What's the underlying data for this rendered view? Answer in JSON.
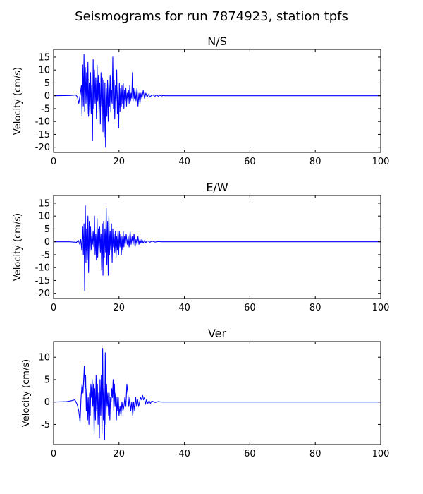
{
  "figure": {
    "title": "Seismograms for run 7874923, station tpfs"
  },
  "chart_data": [
    {
      "type": "line",
      "title": "N/S",
      "ylabel": "Velocity (cm/s)",
      "xlabel": "",
      "xlim": [
        0,
        100
      ],
      "ylim": [
        -22,
        18
      ],
      "xticks": [
        "0",
        "20",
        "40",
        "60",
        "80",
        "100"
      ],
      "yticks": [
        "15",
        "10",
        "5",
        "0",
        "-5",
        "-10",
        "-15",
        "-20"
      ],
      "grid": false,
      "series": [
        {
          "color": "#0000ff",
          "x": [
            0,
            5,
            6.8,
            7.3,
            7.7,
            8.2,
            8.5,
            8.7,
            8.9,
            9.1,
            9.3,
            9.5,
            9.7,
            9.9,
            10.1,
            10.3,
            10.5,
            10.7,
            10.9,
            11.1,
            11.3,
            11.5,
            11.7,
            11.9,
            12.1,
            12.3,
            12.5,
            12.7,
            12.9,
            13.1,
            13.3,
            13.5,
            13.7,
            13.9,
            14.1,
            14.3,
            14.5,
            14.7,
            14.9,
            15.1,
            15.3,
            15.5,
            15.7,
            15.9,
            16.1,
            16.3,
            16.5,
            16.7,
            16.9,
            17.1,
            17.3,
            17.5,
            17.7,
            17.9,
            18.1,
            18.3,
            18.5,
            18.7,
            18.9,
            19.1,
            19.3,
            19.5,
            19.7,
            19.9,
            20.1,
            20.3,
            20.5,
            20.7,
            20.9,
            21.1,
            21.3,
            21.5,
            21.7,
            21.9,
            22.1,
            22.3,
            22.5,
            22.7,
            22.9,
            23.1,
            23.3,
            23.5,
            23.7,
            23.9,
            24.1,
            24.3,
            24.5,
            24.7,
            24.9,
            25.2,
            25.5,
            25.8,
            26.1,
            26.4,
            26.7,
            27.0,
            27.4,
            27.8,
            28.2,
            28.6,
            29.0,
            29.5,
            30.0,
            30.5,
            31.0,
            31.5,
            32.0,
            32.5,
            33.0,
            33.5,
            34.0,
            35.0,
            36.0,
            38.0,
            40.0,
            100
          ],
          "y": [
            0,
            0.1,
            0.3,
            -0.5,
            -3,
            1,
            4,
            -8,
            12,
            -4,
            16,
            -6,
            11,
            -3,
            9,
            -7,
            13,
            -8,
            5,
            -6,
            9,
            -7,
            4,
            -17.5,
            14,
            -5,
            10,
            -3,
            7,
            -9,
            12,
            -2,
            8,
            -6,
            5,
            -11,
            9,
            -4,
            7,
            -14,
            6,
            -16,
            5,
            -20,
            3,
            -8,
            6,
            -10,
            5,
            -4,
            8,
            -6,
            2,
            -3,
            15,
            -5,
            6,
            -9,
            4,
            -2,
            10,
            -7,
            2,
            -12.5,
            5,
            -6,
            3,
            -4,
            4,
            -3,
            5,
            -5,
            2,
            -2,
            3,
            -4,
            1,
            -1,
            2,
            -3,
            4,
            -2,
            1,
            -1,
            9,
            -2,
            3,
            -1,
            2,
            -2,
            3,
            -4,
            1,
            -3,
            1,
            -1,
            2,
            -1,
            1,
            -0.5,
            0.5,
            -0.5,
            0.3,
            0.2,
            -0.2,
            0.4,
            -0.2,
            0.2,
            -0.1,
            0.1,
            0,
            0,
            0,
            0,
            0,
            0
          ]
        }
      ]
    },
    {
      "type": "line",
      "title": "E/W",
      "ylabel": "Velocity (cm/s)",
      "xlabel": "",
      "xlim": [
        0,
        100
      ],
      "ylim": [
        -22,
        18
      ],
      "xticks": [
        "0",
        "20",
        "40",
        "60",
        "80",
        "100"
      ],
      "yticks": [
        "15",
        "10",
        "5",
        "0",
        "-5",
        "-10",
        "-15",
        "-20"
      ],
      "grid": false,
      "series": [
        {
          "color": "#0000ff",
          "x": [
            0,
            5,
            7.0,
            7.6,
            8.0,
            8.3,
            8.6,
            8.9,
            9.1,
            9.3,
            9.5,
            9.7,
            9.9,
            10.1,
            10.3,
            10.5,
            10.7,
            10.9,
            11.1,
            11.3,
            11.5,
            11.7,
            11.9,
            12.1,
            12.3,
            12.5,
            12.7,
            12.9,
            13.1,
            13.3,
            13.5,
            13.7,
            13.9,
            14.1,
            14.3,
            14.5,
            14.7,
            14.9,
            15.1,
            15.3,
            15.5,
            15.7,
            15.9,
            16.1,
            16.3,
            16.5,
            16.7,
            16.9,
            17.1,
            17.3,
            17.5,
            17.7,
            17.9,
            18.1,
            18.3,
            18.5,
            18.7,
            18.9,
            19.1,
            19.3,
            19.5,
            19.7,
            19.9,
            20.1,
            20.3,
            20.5,
            20.7,
            20.9,
            21.1,
            21.3,
            21.5,
            21.7,
            21.9,
            22.2,
            22.5,
            22.8,
            23.1,
            23.4,
            23.7,
            24.0,
            24.3,
            24.6,
            24.9,
            25.2,
            25.5,
            25.8,
            26.1,
            26.4,
            26.7,
            27.0,
            27.4,
            27.8,
            28.2,
            28.6,
            29.0,
            29.5,
            30.0,
            31.0,
            32.0,
            33.0,
            34.0,
            36.0,
            40.0,
            100
          ],
          "y": [
            0,
            0,
            -0.2,
            0.5,
            -1,
            1,
            -3,
            6,
            -5,
            7,
            -19,
            14,
            -8,
            5,
            -7,
            10,
            -12,
            8,
            -4,
            6,
            -3,
            2,
            -1,
            4,
            -2,
            10,
            -5,
            3,
            -7,
            9,
            -6,
            5,
            -3,
            6,
            -4,
            3,
            -11,
            7,
            -13,
            8,
            -6,
            5,
            -4,
            13,
            -9,
            8,
            -13,
            10,
            -5,
            4,
            -3,
            7,
            -8,
            5,
            -2,
            3,
            -4,
            4,
            -6,
            2,
            -3,
            4,
            -5,
            4,
            -2,
            3,
            -5,
            2,
            -3,
            4,
            -2,
            2,
            -1,
            3,
            -1,
            2,
            -2,
            4,
            -1,
            2,
            -1,
            3,
            -2,
            1,
            -1,
            2,
            -1,
            1,
            -0.5,
            1,
            -0.5,
            0.5,
            -0.3,
            0.3,
            0.2,
            -0.2,
            0.3,
            -0.1,
            0.1,
            0,
            0,
            0,
            0,
            0
          ]
        }
      ]
    },
    {
      "type": "line",
      "title": "Ver",
      "ylabel": "Velocity (cm/s)",
      "xlabel": "",
      "xlim": [
        0,
        100
      ],
      "ylim": [
        -9.5,
        13.5
      ],
      "xticks": [
        "0",
        "20",
        "40",
        "60",
        "80",
        "100"
      ],
      "yticks": [
        "10",
        "5",
        "0",
        "-5"
      ],
      "grid": false,
      "series": [
        {
          "color": "#0000ff",
          "x": [
            0,
            4,
            5.5,
            6.5,
            7.2,
            7.7,
            8.1,
            8.4,
            8.7,
            9.0,
            9.2,
            9.4,
            9.6,
            9.8,
            10.0,
            10.2,
            10.4,
            10.6,
            10.8,
            11.0,
            11.2,
            11.4,
            11.6,
            11.8,
            12.0,
            12.2,
            12.4,
            12.6,
            12.8,
            13.0,
            13.2,
            13.4,
            13.6,
            13.8,
            14.0,
            14.2,
            14.4,
            14.6,
            14.8,
            15.0,
            15.2,
            15.4,
            15.6,
            15.8,
            16.0,
            16.2,
            16.4,
            16.6,
            16.8,
            17.0,
            17.2,
            17.4,
            17.6,
            17.8,
            18.0,
            18.2,
            18.4,
            18.6,
            18.8,
            19.0,
            19.2,
            19.4,
            19.6,
            19.8,
            20.0,
            20.3,
            20.6,
            20.9,
            21.2,
            21.5,
            21.8,
            22.1,
            22.4,
            22.7,
            23.0,
            23.3,
            23.6,
            23.9,
            24.2,
            24.5,
            24.8,
            25.1,
            25.4,
            25.7,
            26.0,
            26.3,
            26.6,
            26.9,
            27.2,
            27.5,
            27.8,
            28.1,
            28.4,
            28.8,
            29.2,
            29.6,
            30.0,
            30.5,
            31.0,
            32.0,
            33.0,
            35.0,
            40.0,
            100
          ],
          "y": [
            0,
            0.1,
            0.3,
            0.5,
            -0.5,
            -2,
            -4.5,
            1,
            4,
            2,
            5,
            8,
            3,
            6,
            -2,
            3,
            -4,
            1,
            -5,
            2,
            -3,
            4,
            1,
            5,
            -1,
            4,
            -7,
            3,
            -4,
            6,
            -2,
            4,
            -5,
            2,
            -8,
            5,
            -3,
            6,
            -7,
            12,
            -4,
            3,
            -8.5,
            11,
            -5,
            4,
            -1,
            2,
            -3,
            2,
            -4,
            1,
            0,
            3,
            1,
            5,
            -2,
            4,
            -1,
            2,
            -4,
            1,
            -2,
            1,
            -3,
            -1,
            -3,
            0,
            -2,
            -1,
            1,
            -1,
            4,
            2,
            -1,
            1,
            -2,
            0,
            -3,
            0,
            -2,
            1,
            -1,
            0.5,
            -1,
            0,
            1,
            0.5,
            1.5,
            0.5,
            1,
            -0.5,
            0.5,
            -0.3,
            0.3,
            -0.3,
            0.2,
            0.1,
            -0.1,
            0.1,
            0,
            0,
            0,
            0
          ]
        }
      ]
    }
  ]
}
